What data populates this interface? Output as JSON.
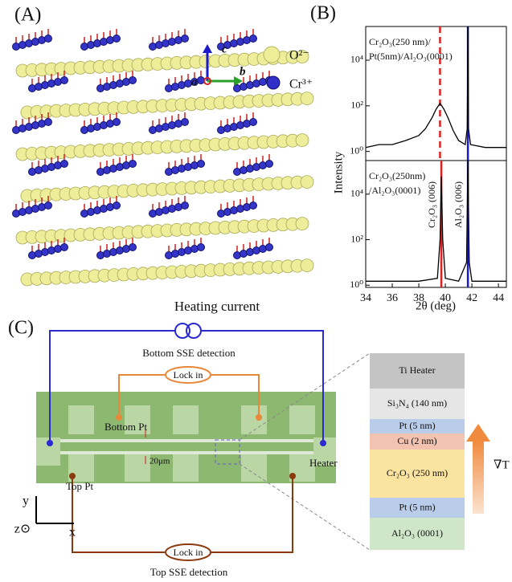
{
  "panels": {
    "a": "(A)",
    "b": "(B)",
    "c": "(C)"
  },
  "structure": {
    "axis_a": "a",
    "axis_b": "b",
    "axis_c": "c",
    "legend": [
      "O²⁻",
      "Cr³⁺"
    ]
  },
  "chart_data": [
    {
      "type": "line",
      "ylabel": "Intensity",
      "log_y": true,
      "xlim": [
        34,
        44.6
      ],
      "ylim": [
        0.4,
        300000
      ],
      "yticks": [
        {
          "value": 1,
          "label": "10⁰"
        },
        {
          "value": 100,
          "label": "10²"
        },
        {
          "value": 10000,
          "label": "10⁴"
        }
      ],
      "annotation": [
        "Cr₂O₃(250 nm)/",
        "Pt(5nm)/Al₂O₃(0001)"
      ],
      "vlines": [
        {
          "x": 39.6,
          "color": "#e02020",
          "style": "dashed"
        },
        {
          "x": 41.7,
          "color": "#1a1acc",
          "style": "solid"
        }
      ],
      "series": [
        {
          "color": "#000000",
          "x": [
            34,
            35,
            36,
            37,
            38,
            38.5,
            39,
            39.3,
            39.6,
            39.9,
            40.2,
            40.6,
            41,
            41.5,
            41.65,
            41.7,
            41.75,
            41.9,
            43,
            44.6
          ],
          "values": [
            1.5,
            2,
            2,
            3,
            5,
            10,
            30,
            70,
            130,
            70,
            30,
            8,
            3,
            2,
            10,
            300000,
            10,
            2,
            1.5,
            1.5
          ]
        }
      ]
    },
    {
      "type": "line",
      "xlabel": "2θ (deg)",
      "log_y": true,
      "xlim": [
        34,
        44.6
      ],
      "ylim": [
        0.8,
        300000
      ],
      "xticks": [
        34,
        36,
        38,
        40,
        42,
        44
      ],
      "yticks": [
        {
          "value": 1,
          "label": "10⁰"
        },
        {
          "value": 100,
          "label": "10²"
        },
        {
          "value": 10000,
          "label": "10⁴"
        }
      ],
      "annotation": [
        "Cr₂O₃(250nm)",
        "/Al₂O₃(0001)"
      ],
      "vlines": [
        {
          "x": 39.7,
          "color": "#e02020",
          "style": "solid",
          "label": "Cr₂O₃ (006)"
        },
        {
          "x": 41.7,
          "color": "#1a1acc",
          "style": "solid",
          "label": "Al₂O₃ (006)"
        }
      ],
      "series": [
        {
          "color": "#000000",
          "x": [
            34,
            36,
            38,
            39.4,
            39.6,
            39.7,
            39.8,
            40,
            41,
            41.6,
            41.7,
            41.8,
            42,
            44,
            44.6
          ],
          "values": [
            1.5,
            1.5,
            1.5,
            2,
            100,
            60000,
            100,
            2,
            1.5,
            10,
            300000,
            10,
            1.5,
            1.5,
            1.5
          ]
        }
      ]
    }
  ],
  "device": {
    "heating_current": "Heating current",
    "bottom_detection": "Bottom  SSE detection",
    "lock_in_top": "Lock in",
    "bottom_pt": "Bottom  Pt",
    "spacing": "20μm",
    "heater": "Heater",
    "top_pt": "Top Pt",
    "lock_in_bottom": "Lock in",
    "top_detection": "Top SSE detection",
    "axis_y": "y",
    "axis_z": "z⊙",
    "axis_x": "x"
  },
  "layers": [
    "Ti Heater",
    "Si₃N₄ (140 nm)",
    "Pt (5 nm)",
    "Cu (2 nm)",
    "Cr₂O₃ (250 nm)",
    "Pt (5 nm)",
    "Al₂O₃ (0001)"
  ],
  "gradient": "∇T"
}
